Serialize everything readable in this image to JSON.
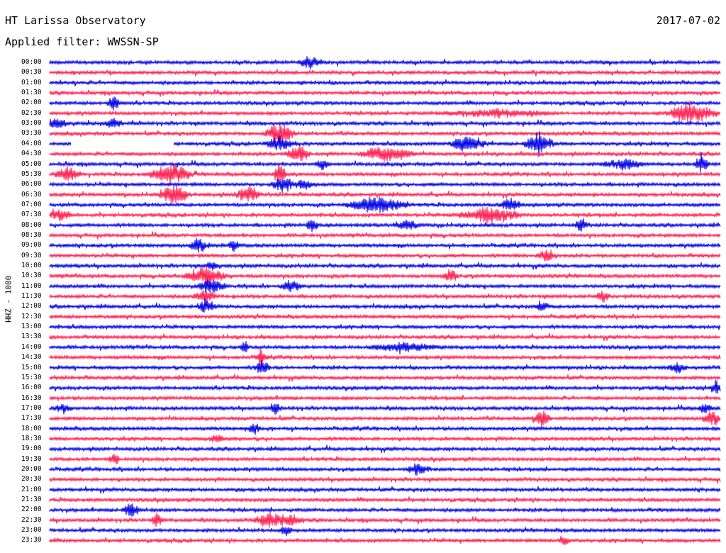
{
  "header": {
    "station": "HT Larissa Observatory",
    "date": "2017-07-02",
    "filter": "Applied filter: WWSSN-SP"
  },
  "channel_label": "HHZ - 1000",
  "trace_colors": [
    "#0000e6",
    "#ff1e50"
  ],
  "time_labels": [
    "00:00",
    "00:30",
    "01:00",
    "01:30",
    "02:00",
    "02:30",
    "03:00",
    "03:30",
    "04:00",
    "04:30",
    "05:00",
    "05:30",
    "06:00",
    "06:30",
    "07:00",
    "07:30",
    "08:00",
    "08:30",
    "09:00",
    "09:30",
    "10:00",
    "10:30",
    "11:00",
    "11:30",
    "12:00",
    "12:30",
    "13:00",
    "13:30",
    "14:00",
    "14:30",
    "15:00",
    "15:30",
    "16:00",
    "16:30",
    "17:00",
    "17:30",
    "18:00",
    "18:30",
    "19:00",
    "19:30",
    "20:00",
    "20:30",
    "21:00",
    "21:30",
    "22:00",
    "22:30",
    "23:00",
    "23:30"
  ]
}
